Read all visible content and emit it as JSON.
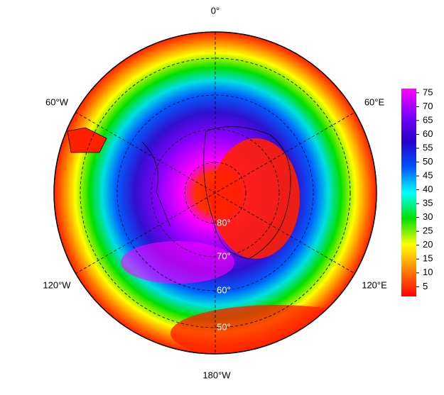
{
  "map": {
    "longitude_labels": [
      "0°",
      "60°W",
      "60°E",
      "120°W",
      "120°E",
      "180°W"
    ],
    "latitude_labels": [
      "80°",
      "70°",
      "60°",
      "50°"
    ]
  },
  "colorbar": {
    "lim": [
      1.5,
      76.5
    ],
    "ticks": [
      5,
      10,
      15,
      20,
      25,
      30,
      35,
      40,
      45,
      50,
      55,
      60,
      65,
      70,
      75
    ],
    "colors": [
      "#ff0000",
      "#ff8000",
      "#ffff00",
      "#00e000",
      "#00ffff",
      "#0050ff",
      "#2800c8",
      "#8000ff",
      "#ff00ff"
    ]
  }
}
